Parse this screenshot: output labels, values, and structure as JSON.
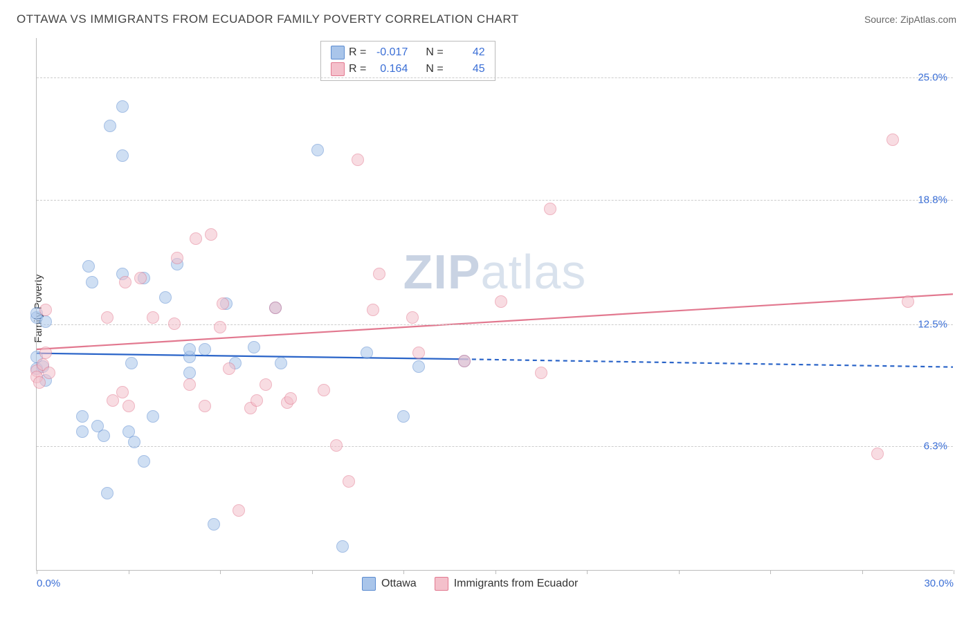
{
  "header": {
    "title": "OTTAWA VS IMMIGRANTS FROM ECUADOR FAMILY POVERTY CORRELATION CHART",
    "source_label": "Source:",
    "source_value": "ZipAtlas.com"
  },
  "watermark": {
    "part1": "ZIP",
    "part2": "atlas"
  },
  "chart": {
    "type": "scatter",
    "ylabel": "Family Poverty",
    "background_color": "#ffffff",
    "grid_color": "#cccccc",
    "axis_color": "#bbbbbb",
    "tick_label_color": "#3b6fd6",
    "marker_radius": 9,
    "marker_opacity": 0.55,
    "marker_stroke_width": 1.2,
    "xlim": [
      0,
      30
    ],
    "ylim": [
      0,
      27
    ],
    "ytick_positions": [
      6.3,
      12.5,
      18.8,
      25.0
    ],
    "ytick_labels": [
      "6.3%",
      "12.5%",
      "18.8%",
      "25.0%"
    ],
    "xtick_positions": [
      0,
      3,
      6,
      9,
      12,
      15,
      18,
      21,
      24,
      27,
      30
    ],
    "xtick_labels_shown": {
      "0": "0.0%",
      "30": "30.0%"
    },
    "series": [
      {
        "name": "Ottawa",
        "fill": "#a9c5ea",
        "stroke": "#5a8bd0",
        "points": [
          [
            0.0,
            10.8
          ],
          [
            0.0,
            10.2
          ],
          [
            0.0,
            12.8
          ],
          [
            0.0,
            13.0
          ],
          [
            0.2,
            10.3
          ],
          [
            0.3,
            9.6
          ],
          [
            0.3,
            12.6
          ],
          [
            1.5,
            7.8
          ],
          [
            1.5,
            7.0
          ],
          [
            1.7,
            15.4
          ],
          [
            1.8,
            14.6
          ],
          [
            2.0,
            7.3
          ],
          [
            2.2,
            6.8
          ],
          [
            2.3,
            3.9
          ],
          [
            2.4,
            22.5
          ],
          [
            2.8,
            23.5
          ],
          [
            2.8,
            21.0
          ],
          [
            2.8,
            15.0
          ],
          [
            3.0,
            7.0
          ],
          [
            3.1,
            10.5
          ],
          [
            3.2,
            6.5
          ],
          [
            3.5,
            14.8
          ],
          [
            3.5,
            5.5
          ],
          [
            3.8,
            7.8
          ],
          [
            4.2,
            13.8
          ],
          [
            4.6,
            15.5
          ],
          [
            5.0,
            10.8
          ],
          [
            5.0,
            11.2
          ],
          [
            5.0,
            10.0
          ],
          [
            5.5,
            11.2
          ],
          [
            5.8,
            2.3
          ],
          [
            6.2,
            13.5
          ],
          [
            6.5,
            10.5
          ],
          [
            7.1,
            11.3
          ],
          [
            7.8,
            13.3
          ],
          [
            8.0,
            10.5
          ],
          [
            9.2,
            21.3
          ],
          [
            10.0,
            1.2
          ],
          [
            10.8,
            11.0
          ],
          [
            12.0,
            7.8
          ],
          [
            12.5,
            10.3
          ],
          [
            14.0,
            10.6
          ]
        ],
        "trend": {
          "color": "#2a64c8",
          "width": 2.2,
          "solid_x_end": 14.0,
          "y_at_xmin": 11.0,
          "y_at_solid_end": 10.7,
          "y_at_xmax": 10.3,
          "dash": "6,5"
        }
      },
      {
        "name": "Immigrants from Ecuador",
        "fill": "#f4c0cb",
        "stroke": "#e2788f",
        "points": [
          [
            0.0,
            10.1
          ],
          [
            0.0,
            9.8
          ],
          [
            0.1,
            9.5
          ],
          [
            0.2,
            10.4
          ],
          [
            0.3,
            13.2
          ],
          [
            0.3,
            11.0
          ],
          [
            0.4,
            10.0
          ],
          [
            2.3,
            12.8
          ],
          [
            2.5,
            8.6
          ],
          [
            2.8,
            9.0
          ],
          [
            2.9,
            14.6
          ],
          [
            3.0,
            8.3
          ],
          [
            3.4,
            14.8
          ],
          [
            3.8,
            12.8
          ],
          [
            4.5,
            12.5
          ],
          [
            4.6,
            15.8
          ],
          [
            5.0,
            9.4
          ],
          [
            5.2,
            16.8
          ],
          [
            5.5,
            8.3
          ],
          [
            5.7,
            17.0
          ],
          [
            6.0,
            12.3
          ],
          [
            6.1,
            13.5
          ],
          [
            6.3,
            10.2
          ],
          [
            6.6,
            3.0
          ],
          [
            7.0,
            8.2
          ],
          [
            7.2,
            8.6
          ],
          [
            7.5,
            9.4
          ],
          [
            7.8,
            13.3
          ],
          [
            8.2,
            8.5
          ],
          [
            8.3,
            8.7
          ],
          [
            9.4,
            9.1
          ],
          [
            9.8,
            6.3
          ],
          [
            10.2,
            4.5
          ],
          [
            10.5,
            20.8
          ],
          [
            11.0,
            13.2
          ],
          [
            11.2,
            15.0
          ],
          [
            12.3,
            12.8
          ],
          [
            12.5,
            11.0
          ],
          [
            14.0,
            10.6
          ],
          [
            15.2,
            13.6
          ],
          [
            16.5,
            10.0
          ],
          [
            16.8,
            18.3
          ],
          [
            27.5,
            5.9
          ],
          [
            28.0,
            21.8
          ],
          [
            28.5,
            13.6
          ]
        ],
        "trend": {
          "color": "#e2788f",
          "width": 2.2,
          "y_at_xmin": 11.2,
          "y_at_xmax": 14.0
        }
      }
    ],
    "legend_top": {
      "rows": [
        {
          "swatch_fill": "#a9c5ea",
          "swatch_stroke": "#5a8bd0",
          "r_label": "R =",
          "r_value": "-0.017",
          "n_label": "N =",
          "n_value": "42"
        },
        {
          "swatch_fill": "#f4c0cb",
          "swatch_stroke": "#e2788f",
          "r_label": "R =",
          "r_value": "0.164",
          "n_label": "N =",
          "n_value": "45"
        }
      ]
    },
    "legend_bottom": [
      {
        "swatch_fill": "#a9c5ea",
        "swatch_stroke": "#5a8bd0",
        "label": "Ottawa"
      },
      {
        "swatch_fill": "#f4c0cb",
        "swatch_stroke": "#e2788f",
        "label": "Immigrants from Ecuador"
      }
    ]
  }
}
